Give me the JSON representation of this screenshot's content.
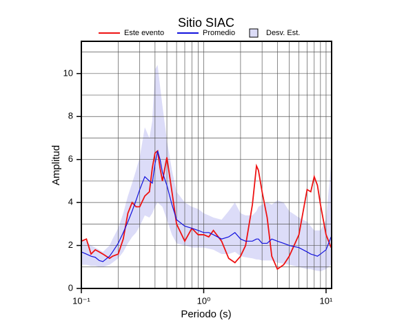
{
  "chart_data": {
    "type": "line",
    "title": "Sitio SIAC",
    "xlabel": "Periodo (s)",
    "ylabel": "Amplitud",
    "xscale": "log",
    "grid": true,
    "x": [
      0.1,
      0.11,
      0.12,
      0.13,
      0.14,
      0.15,
      0.17,
      0.18,
      0.2,
      0.22,
      0.24,
      0.26,
      0.28,
      0.3,
      0.33,
      0.36,
      0.38,
      0.4,
      0.42,
      0.44,
      0.46,
      0.5,
      0.55,
      0.6,
      0.7,
      0.8,
      0.9,
      1.0,
      1.1,
      1.2,
      1.4,
      1.6,
      1.8,
      2.0,
      2.2,
      2.5,
      2.7,
      2.8,
      3.0,
      3.3,
      3.6,
      4.0,
      4.5,
      5.0,
      6.0,
      7.0,
      7.5,
      8.0,
      8.5,
      9.0,
      10,
      11
    ],
    "series": [
      {
        "name": "Este evento",
        "color": "#ee1111",
        "values": [
          2.2,
          2.3,
          1.6,
          1.8,
          1.7,
          1.6,
          1.4,
          1.5,
          1.6,
          2.3,
          3.5,
          4.0,
          3.8,
          3.8,
          4.3,
          4.5,
          5.6,
          6.3,
          6.4,
          5.6,
          5.0,
          6.1,
          4.5,
          3.0,
          2.2,
          2.8,
          2.5,
          2.5,
          2.4,
          2.7,
          2.2,
          1.4,
          1.2,
          1.5,
          2.0,
          3.9,
          5.7,
          5.5,
          4.5,
          3.3,
          1.5,
          0.9,
          1.1,
          1.5,
          2.5,
          4.6,
          4.5,
          5.2,
          4.8,
          3.9,
          2.5,
          1.9
        ]
      },
      {
        "name": "Promedio",
        "color": "#1111dd",
        "values": [
          1.7,
          1.6,
          1.5,
          1.45,
          1.3,
          1.25,
          1.5,
          1.7,
          2.1,
          2.6,
          3.1,
          3.6,
          4.1,
          4.6,
          5.2,
          5.0,
          4.9,
          5.8,
          6.4,
          6.0,
          5.4,
          4.8,
          3.9,
          3.2,
          2.9,
          2.8,
          2.7,
          2.6,
          2.6,
          2.5,
          2.3,
          2.4,
          2.6,
          2.3,
          2.2,
          2.2,
          2.3,
          2.3,
          2.1,
          2.1,
          2.3,
          2.2,
          2.1,
          2.0,
          1.9,
          1.7,
          1.6,
          1.55,
          1.5,
          1.6,
          1.8,
          2.4
        ]
      },
      {
        "name": "Desv. Est.",
        "color": "#dcdcf8",
        "lower": [
          1.1,
          1.1,
          1.05,
          1.05,
          1.0,
          1.0,
          1.1,
          1.2,
          1.4,
          1.7,
          2.1,
          2.4,
          2.6,
          2.9,
          3.4,
          3.3,
          3.5,
          3.8,
          4.0,
          3.9,
          3.8,
          3.2,
          2.5,
          2.1,
          2.0,
          1.9,
          1.9,
          1.9,
          1.85,
          1.8,
          1.6,
          1.6,
          1.7,
          1.5,
          1.45,
          1.4,
          1.35,
          1.35,
          1.3,
          1.3,
          1.3,
          1.2,
          1.15,
          1.1,
          1.0,
          0.9,
          0.9,
          0.85,
          0.82,
          0.8,
          0.9,
          1.1
        ],
        "upper": [
          2.3,
          2.2,
          2.0,
          1.9,
          1.8,
          1.7,
          2.0,
          2.3,
          2.8,
          3.5,
          4.3,
          4.9,
          5.5,
          6.1,
          7.5,
          7.0,
          7.8,
          10.2,
          10.4,
          9.4,
          8.5,
          6.9,
          5.5,
          4.5,
          4.0,
          3.8,
          3.7,
          3.5,
          3.4,
          3.3,
          3.2,
          3.6,
          4.0,
          3.5,
          3.4,
          3.4,
          3.6,
          3.8,
          3.9,
          4.0,
          3.9,
          4.1,
          4.0,
          3.6,
          3.3,
          3.1,
          2.9,
          2.7,
          2.7,
          2.7,
          3.2,
          5.8
        ]
      }
    ],
    "xlim": [
      0.1,
      11.1
    ],
    "ylim": [
      0,
      11.5
    ],
    "xticks": [
      {
        "value": 0.1,
        "label": "10⁻¹"
      },
      {
        "value": 1,
        "label": "10⁰"
      },
      {
        "value": 10,
        "label": "10¹"
      }
    ],
    "xminor": [
      0.2,
      0.3,
      0.4,
      0.5,
      0.6,
      0.7,
      0.8,
      0.9,
      2,
      3,
      4,
      5,
      6,
      7,
      8,
      9
    ],
    "yticks": [
      0,
      2,
      4,
      6,
      8,
      10
    ],
    "yminor": [
      1,
      3,
      5,
      7,
      9,
      11
    ]
  }
}
